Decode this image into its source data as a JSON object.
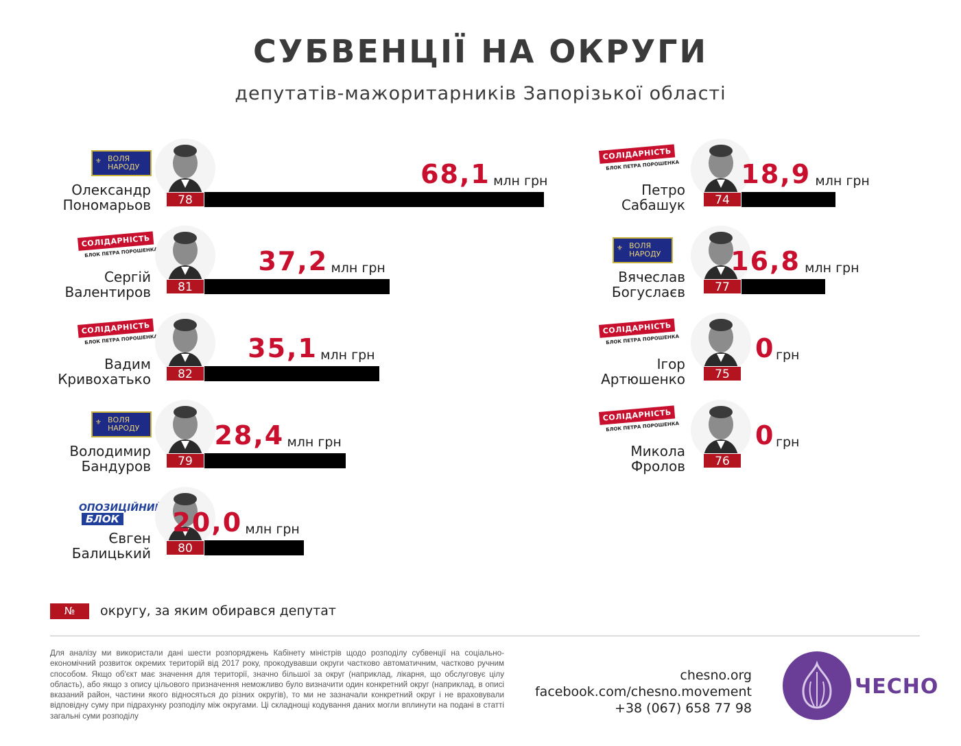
{
  "title": "СУБВЕНЦІЇ НА ОКРУГИ",
  "subtitle": "депутатів-мажоритарників Запорізької області",
  "chart_data": {
    "type": "bar",
    "unit": "млн грн",
    "entries": [
      {
        "first": "Олександр",
        "last": "Пономарьов",
        "district": "78",
        "value": 68.1,
        "label": "68,1",
        "unit": "млн грн",
        "party": "volia"
      },
      {
        "first": "Сергій",
        "last": "Валентиров",
        "district": "81",
        "value": 37.2,
        "label": "37,2",
        "unit": "млн грн",
        "party": "solidarity"
      },
      {
        "first": "Вадим",
        "last": "Кривохатько",
        "district": "82",
        "value": 35.1,
        "label": "35,1",
        "unit": "млн грн",
        "party": "solidarity"
      },
      {
        "first": "Володимир",
        "last": "Бандуров",
        "district": "79",
        "value": 28.4,
        "label": "28,4",
        "unit": "млн грн",
        "party": "volia"
      },
      {
        "first": "Євген",
        "last": "Балицький",
        "district": "80",
        "value": 20.0,
        "label": "20,0",
        "unit": "млн грн",
        "party": "opposition"
      },
      {
        "first": "Петро",
        "last": "Сабашук",
        "district": "74",
        "value": 18.9,
        "label": "18,9",
        "unit": "млн грн",
        "party": "solidarity"
      },
      {
        "first": "Вячеслав",
        "last": "Богуслаєв",
        "district": "77",
        "value": 16.8,
        "label": "16,8",
        "unit": "млн грн",
        "party": "volia"
      },
      {
        "first": "Ігор",
        "last": "Артюшенко",
        "district": "75",
        "value": 0,
        "label": "0",
        "unit": "грн",
        "party": "solidarity"
      },
      {
        "first": "Микола",
        "last": "Фролов",
        "district": "76",
        "value": 0,
        "label": "0",
        "unit": "грн",
        "party": "solidarity"
      }
    ]
  },
  "parties": {
    "volia": {
      "line1": "ВОЛЯ",
      "line2": "НАРОДУ"
    },
    "solidarity": {
      "tag": "СОЛІДАРНІСТЬ",
      "sub": "БЛОК ПЕТРА ПОРОШЕНКА"
    },
    "opposition": {
      "line1": "ОПОЗИЦІЙНИЙ",
      "line2": "БЛОК"
    }
  },
  "legend": {
    "symbol": "№",
    "text": "округу, за яким обирався депутат"
  },
  "footnote": "Для аналізу ми використали дані шести розпоряджень Кабінету міністрів щодо розподілу субвенції на соціально-економічний розвиток окремих територій від 2017 року, прокодувавши округи частково автоматичним, частково ручним способом. Якщо об'єкт має значення для території, значно більшої за округ (наприклад, лікарня, що обслуговує цілу область), або якщо з опису цільового призначення неможливо було визначити один конкретний округ (наприклад, в описі вказаний район, частини якого відносяться до різних округів), то ми не зазначали конкретний округ і не враховували відповідну суму при підрахунку розподілу між округами. Ці складнощі кодування даних могли вплинути на подані в статті загальні суми розподілу",
  "contacts": {
    "site": "chesno.org",
    "facebook": "facebook.com/chesno.movement",
    "phone": "+38 (067) 658 77 98"
  },
  "logo": {
    "text": "ЧЕСНО",
    "color": "#6a3d97"
  },
  "colors": {
    "value": "#c8102e",
    "district": "#b3141f",
    "bar": "#000000"
  }
}
